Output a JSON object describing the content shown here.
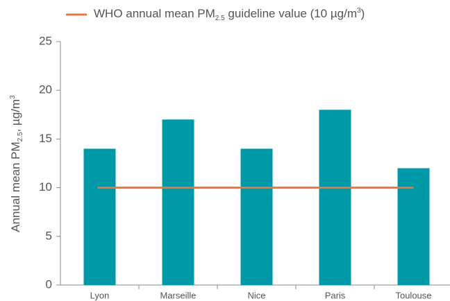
{
  "chart_data": {
    "type": "bar",
    "legend_label": [
      "WHO annual mean PM",
      "2.5",
      " guideline value (10 µg/m",
      "3",
      ")"
    ],
    "y_label": [
      "Annual mean PM",
      "2.5",
      ", µg/m",
      "3"
    ],
    "categories": [
      "Lyon",
      "Marseille",
      "Nice",
      "Paris",
      "Toulouse"
    ],
    "values": [
      14,
      17,
      14,
      18,
      12
    ],
    "color": "#0099a8",
    "reference_line": {
      "value": 10,
      "color": "#e8763d"
    },
    "ylim": [
      0,
      25
    ],
    "yticks": [
      0,
      5,
      10,
      15,
      20,
      25
    ],
    "grid": false
  }
}
